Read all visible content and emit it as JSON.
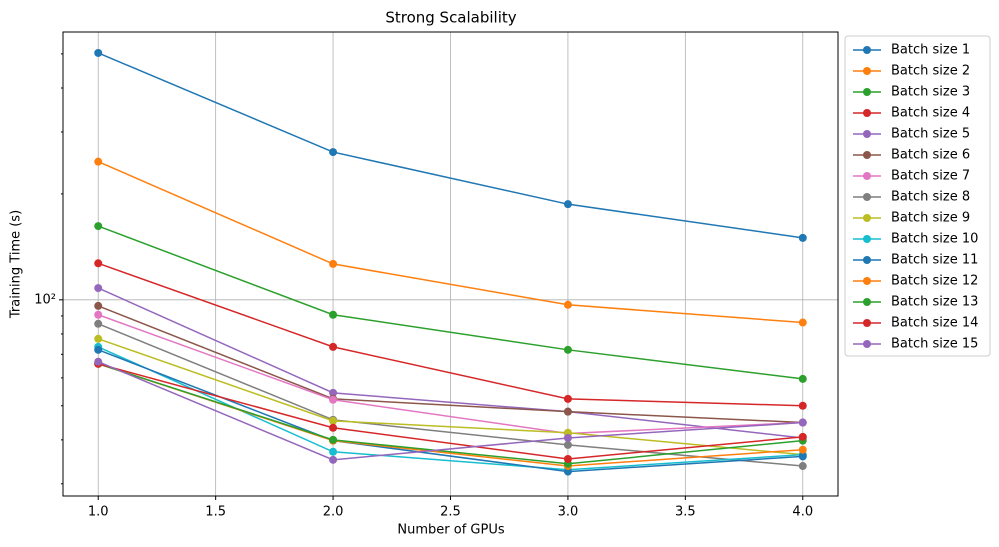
{
  "chart_data": {
    "type": "line",
    "title": "Strong Scalability",
    "xlabel": "Number of GPUs",
    "ylabel": "Training Time (s)",
    "x": [
      1,
      2,
      3,
      4
    ],
    "xlim": [
      0.85,
      4.15
    ],
    "xticks": [
      {
        "value": 1,
        "label": "1.0"
      },
      1.5,
      {
        "value": 2,
        "label": "2.0"
      },
      2.5,
      {
        "value": 3,
        "label": "3.0"
      },
      3.5,
      {
        "value": 4,
        "label": "4.0"
      }
    ],
    "ylim": [
      27.7,
      577
    ],
    "yscale": "log",
    "yticks": [
      {
        "value": 100,
        "label": "10²"
      }
    ],
    "yminorticks": [
      30,
      40,
      50,
      60,
      70,
      80,
      90,
      200,
      300,
      400,
      500
    ],
    "grid": true,
    "legend": "outside upper right",
    "series": [
      {
        "name": "Batch size 1",
        "color": "#1f77b4",
        "values": [
          503,
          263,
          187,
          150
        ]
      },
      {
        "name": "Batch size 2",
        "color": "#ff7f0e",
        "values": [
          247,
          126.5,
          96.8,
          86.2
        ]
      },
      {
        "name": "Batch size 3",
        "color": "#2ca02c",
        "values": [
          162,
          90.7,
          72.1,
          59.6
        ]
      },
      {
        "name": "Batch size 4",
        "color": "#d62728",
        "values": [
          127,
          73.5,
          52.3,
          50.0
        ]
      },
      {
        "name": "Batch size 5",
        "color": "#9467bd",
        "values": [
          108,
          54.4,
          48.1,
          40.5
        ]
      },
      {
        "name": "Batch size 6",
        "color": "#8c564b",
        "values": [
          96.1,
          52.3,
          48.1,
          44.8
        ]
      },
      {
        "name": "Batch size 7",
        "color": "#e377c2",
        "values": [
          90.7,
          52.0,
          41.7,
          44.8
        ]
      },
      {
        "name": "Batch size 8",
        "color": "#7f7f7f",
        "values": [
          85.5,
          45.6,
          38.7,
          33.7
        ]
      },
      {
        "name": "Batch size 9",
        "color": "#bcbd22",
        "values": [
          77.5,
          45.3,
          41.9,
          36.3
        ]
      },
      {
        "name": "Batch size 10",
        "color": "#17becf",
        "values": [
          73.5,
          37.0,
          32.9,
          36.3
        ]
      },
      {
        "name": "Batch size 11",
        "color": "#1f77b4",
        "values": [
          72.1,
          39.8,
          32.5,
          35.9
        ]
      },
      {
        "name": "Batch size 12",
        "color": "#ff7f0e",
        "values": [
          65.8,
          39.8,
          33.7,
          37.5
        ]
      },
      {
        "name": "Batch size 13",
        "color": "#2ca02c",
        "values": [
          65.8,
          40.0,
          34.2,
          39.8
        ]
      },
      {
        "name": "Batch size 14",
        "color": "#d62728",
        "values": [
          65.8,
          43.3,
          35.3,
          40.8
        ]
      },
      {
        "name": "Batch size 15",
        "color": "#9467bd",
        "values": [
          66.7,
          35.1,
          40.5,
          44.8
        ]
      }
    ]
  }
}
